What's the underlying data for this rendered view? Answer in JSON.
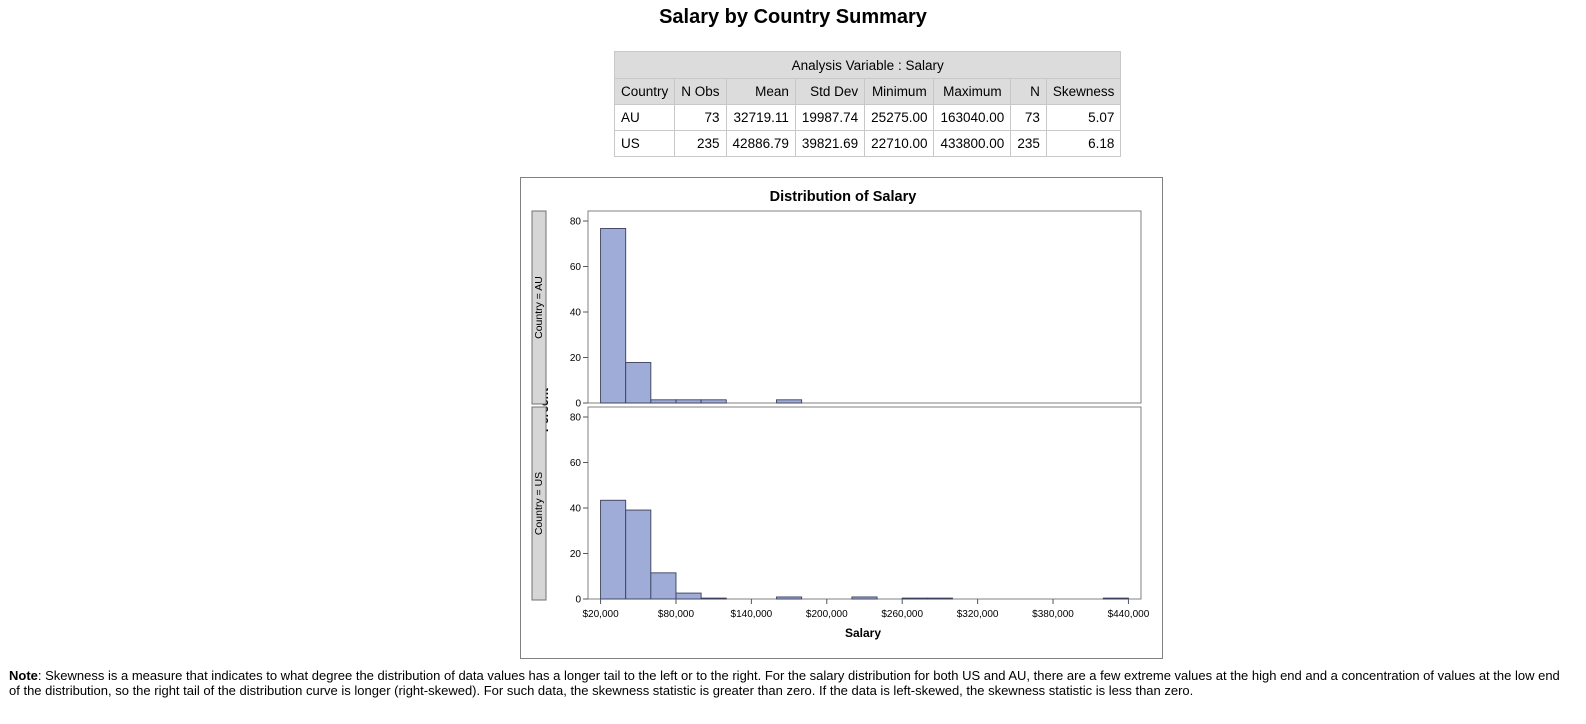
{
  "title": "Salary by Country Summary",
  "table": {
    "caption": "Analysis Variable : Salary",
    "headers": [
      "Country",
      "N Obs",
      "Mean",
      "Std Dev",
      "Minimum",
      "Maximum",
      "N",
      "Skewness"
    ],
    "rows": [
      [
        "AU",
        "73",
        "32719.11",
        "19987.74",
        "25275.00",
        "163040.00",
        "73",
        "5.07"
      ],
      [
        "US",
        "235",
        "42886.79",
        "39821.69",
        "22710.00",
        "433800.00",
        "235",
        "6.18"
      ]
    ]
  },
  "chart_data": {
    "type": "bar",
    "title": "Distribution of Salary",
    "xlabel": "Salary",
    "ylabel": "Percent",
    "xlim": [
      10000,
      450000
    ],
    "ylim": [
      0,
      80
    ],
    "bin_width": 20000,
    "bin_centers": [
      30000,
      50000,
      70000,
      90000,
      110000,
      130000,
      150000,
      170000,
      190000,
      210000,
      230000,
      250000,
      270000,
      290000,
      310000,
      330000,
      350000,
      370000,
      390000,
      410000,
      430000
    ],
    "x_ticks": [
      "$20,000",
      "$80,000",
      "$140,000",
      "$200,000",
      "$260,000",
      "$320,000",
      "$380,000",
      "$440,000"
    ],
    "x_tick_values": [
      20000,
      80000,
      140000,
      200000,
      260000,
      320000,
      380000,
      440000
    ],
    "y_ticks": [
      0,
      20,
      40,
      60,
      80
    ],
    "bar_color": "#a0acd8",
    "bar_edge": "#3a3f5c",
    "series": [
      {
        "name": "Country = AU",
        "values": [
          76.7,
          17.8,
          1.4,
          1.4,
          1.4,
          0,
          0,
          1.4,
          0,
          0,
          0,
          0,
          0,
          0,
          0,
          0,
          0,
          0,
          0,
          0,
          0
        ]
      },
      {
        "name": "Country = US",
        "values": [
          43.4,
          39.1,
          11.5,
          2.6,
          0.4,
          0,
          0,
          0.9,
          0,
          0,
          0.9,
          0,
          0.4,
          0.4,
          0,
          0,
          0,
          0,
          0,
          0,
          0.4
        ]
      }
    ]
  },
  "note": {
    "label": "Note",
    "text": ": Skewness is a measure that indicates to what degree the distribution of data values has a longer tail to the left or to the right. For the salary distribution for both US and AU, there are a few extreme values at the high end and a concentration of values at the low end of the distribution, so the right tail of the distribution curve is longer (right-skewed). For such data, the skewness statistic is greater than zero. If the data is left-skewed, the skewness statistic is less than zero."
  }
}
